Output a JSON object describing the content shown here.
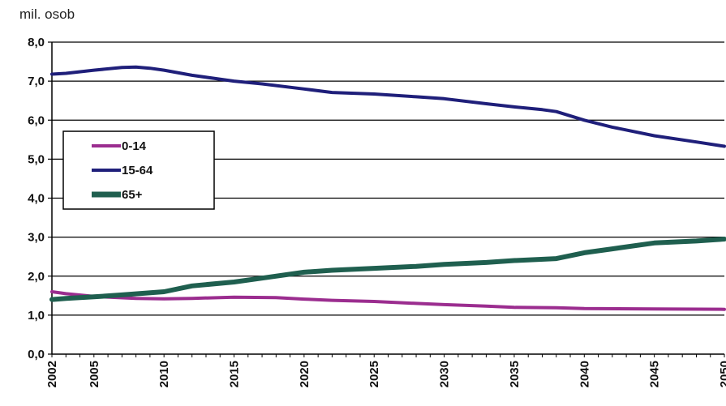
{
  "chart_data": {
    "type": "line",
    "title": "",
    "unit_label": "mil. osob",
    "ylim": [
      0,
      8
    ],
    "yticks": [
      "0,0",
      "1,0",
      "2,0",
      "3,0",
      "4,0",
      "5,0",
      "6,0",
      "7,0",
      "8,0"
    ],
    "xlim": [
      2002,
      2050
    ],
    "xticks": [
      "2002",
      "2005",
      "2010",
      "2015",
      "2020",
      "2025",
      "2030",
      "2035",
      "2040",
      "2045",
      "2050"
    ],
    "grid": true,
    "legend_position": "left",
    "series": [
      {
        "name": "0-14",
        "color": "#9b2d8f",
        "x": [
          2002,
          2003,
          2005,
          2008,
          2010,
          2012,
          2015,
          2018,
          2020,
          2022,
          2025,
          2028,
          2030,
          2033,
          2035,
          2038,
          2040,
          2045,
          2050
        ],
        "values": [
          1.6,
          1.55,
          1.48,
          1.43,
          1.42,
          1.43,
          1.46,
          1.45,
          1.41,
          1.38,
          1.35,
          1.3,
          1.27,
          1.23,
          1.2,
          1.19,
          1.17,
          1.16,
          1.15
        ]
      },
      {
        "name": "15-64",
        "color": "#1f1f7a",
        "x": [
          2002,
          2003,
          2005,
          2007,
          2008,
          2009,
          2010,
          2012,
          2015,
          2017,
          2020,
          2022,
          2025,
          2028,
          2030,
          2033,
          2035,
          2037,
          2038,
          2040,
          2042,
          2045,
          2048,
          2050
        ],
        "values": [
          7.18,
          7.2,
          7.28,
          7.35,
          7.36,
          7.33,
          7.28,
          7.15,
          7.0,
          6.93,
          6.8,
          6.71,
          6.67,
          6.6,
          6.55,
          6.42,
          6.34,
          6.27,
          6.22,
          6.0,
          5.82,
          5.6,
          5.44,
          5.33
        ]
      },
      {
        "name": "65+",
        "color": "#1f5f4f",
        "x": [
          2002,
          2003,
          2005,
          2007,
          2010,
          2012,
          2015,
          2017,
          2020,
          2022,
          2025,
          2028,
          2030,
          2033,
          2035,
          2038,
          2040,
          2042,
          2045,
          2048,
          2050
        ],
        "values": [
          1.4,
          1.43,
          1.47,
          1.52,
          1.6,
          1.75,
          1.85,
          1.95,
          2.1,
          2.15,
          2.2,
          2.25,
          2.3,
          2.35,
          2.4,
          2.45,
          2.6,
          2.7,
          2.85,
          2.9,
          2.95
        ]
      }
    ]
  }
}
